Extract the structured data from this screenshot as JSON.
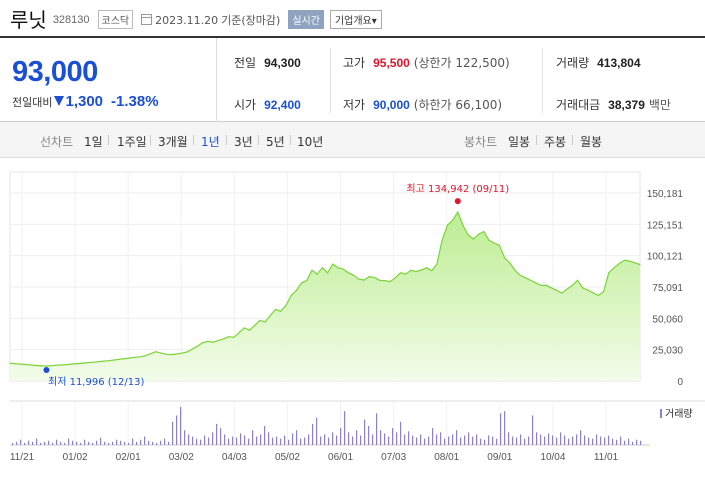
{
  "header": {
    "stock_name": "루닛",
    "stock_code": "328130",
    "market": "코스닥",
    "date": "2023.11.20",
    "date_suffix": "기준(장마감)",
    "realtime_label": "실시간",
    "company_button": "기업개요▾"
  },
  "price": {
    "current": "93,000",
    "change_label": "전일대비",
    "change_direction": "down",
    "change_value": "1,300",
    "change_percent": "-1.38%"
  },
  "stats": {
    "prev_close_label": "전일",
    "prev_close": "94,300",
    "high_label": "고가",
    "high": "95,500",
    "upper_limit": "(상한가 122,500)",
    "volume_label": "거래량",
    "volume": "413,804",
    "open_label": "시가",
    "open": "92,400",
    "low_label": "저가",
    "low": "90,000",
    "lower_limit": "(하한가 66,100)",
    "amount_label": "거래대금",
    "amount": "38,379",
    "amount_unit": "백만"
  },
  "tabs": {
    "line_label": "선차트",
    "line_periods": [
      "1일",
      "1주일",
      "3개월",
      "1년",
      "3년",
      "5년",
      "10년"
    ],
    "active_period": "1년",
    "candle_label": "봉차트",
    "candle_periods": [
      "일봉",
      "주봉",
      "월봉"
    ]
  },
  "colors": {
    "accent_blue": "#1a4fd6",
    "up_red": "#e0142c",
    "line_green": "#7bd33a",
    "fill_green": "#dff7c8",
    "volume_purple": "#8e81c6"
  },
  "chart_data": [
    {
      "type": "area",
      "y_ticks": [
        150181,
        125151,
        100121,
        75091,
        50060,
        25030,
        0
      ],
      "ylim": [
        0,
        150181
      ],
      "x_ticks": [
        "11/21",
        "01/02",
        "02/01",
        "03/02",
        "04/03",
        "05/02",
        "06/01",
        "07/03",
        "08/01",
        "09/01",
        "10/04",
        "11/01"
      ],
      "max_annotation": {
        "label": "최고 134,942 (09/11)",
        "value": 134942
      },
      "min_annotation": {
        "label": "최저 11,996 (12/13)",
        "value": 11996
      },
      "series": [
        {
          "values": [
            14200,
            13800,
            13500,
            13200,
            12800,
            12400,
            12100,
            11996,
            12200,
            12600,
            12900,
            13100,
            13600,
            13900,
            14300,
            14700,
            15000,
            15400,
            15900,
            16200,
            16800,
            17300,
            17800,
            18400,
            18900,
            19300,
            20200,
            21800,
            23400,
            22300,
            21300,
            21100,
            21600,
            22200,
            23200,
            25400,
            27800,
            30600,
            31600,
            31000,
            32400,
            33600,
            35400,
            34800,
            38600,
            42400,
            40600,
            44400,
            48400,
            47200,
            52300,
            57200,
            55700,
            60400,
            68400,
            72400,
            78400,
            80400,
            88400,
            85400,
            90400,
            86400,
            93400,
            90400,
            89400,
            86400,
            84400,
            81400,
            80600,
            83400,
            82700,
            80400,
            80200,
            79400,
            82400,
            86400,
            85400,
            88400,
            87400,
            88700,
            90400,
            88200,
            93400,
            112400,
            124400,
            128400,
            134942,
            124200,
            116600,
            113400,
            117300,
            119400,
            112400,
            110200,
            108400,
            98400,
            94400,
            88400,
            84400,
            82400,
            80400,
            78400,
            76400,
            76400,
            74400,
            72400,
            70200,
            73400,
            76400,
            80400,
            74400,
            72600,
            70400,
            68400,
            71400,
            86400,
            90400,
            93800,
            96400,
            95800,
            94400,
            93000
          ]
        }
      ]
    },
    {
      "type": "bar",
      "legend": "거래량",
      "values": [
        2,
        3,
        5,
        2,
        4,
        3,
        6,
        2,
        3,
        4,
        2,
        5,
        3,
        2,
        6,
        4,
        3,
        2,
        5,
        3,
        2,
        4,
        7,
        3,
        2,
        3,
        5,
        4,
        3,
        2,
        6,
        3,
        5,
        8,
        4,
        3,
        2,
        4,
        6,
        3,
        22,
        28,
        36,
        14,
        10,
        8,
        6,
        5,
        9,
        7,
        12,
        20,
        16,
        10,
        6,
        8,
        7,
        11,
        9,
        6,
        14,
        8,
        10,
        18,
        12,
        7,
        8,
        6,
        9,
        5,
        11,
        14,
        6,
        7,
        10,
        20,
        26,
        8,
        10,
        7,
        12,
        9,
        16,
        32,
        12,
        8,
        14,
        9,
        24,
        18,
        10,
        30,
        14,
        11,
        8,
        16,
        12,
        22,
        10,
        13,
        9,
        7,
        10,
        6,
        8,
        16,
        10,
        12,
        6,
        8,
        10,
        14,
        7,
        9,
        12,
        8,
        10,
        6,
        5,
        9,
        8,
        6,
        30,
        32,
        12,
        8,
        7,
        10,
        6,
        8,
        28,
        12,
        10,
        8,
        11,
        9,
        7,
        12,
        9,
        6,
        8,
        10,
        14,
        9,
        7,
        6,
        10,
        8,
        7,
        9,
        6,
        5,
        8,
        4,
        6,
        3,
        5,
        4
      ]
    }
  ]
}
